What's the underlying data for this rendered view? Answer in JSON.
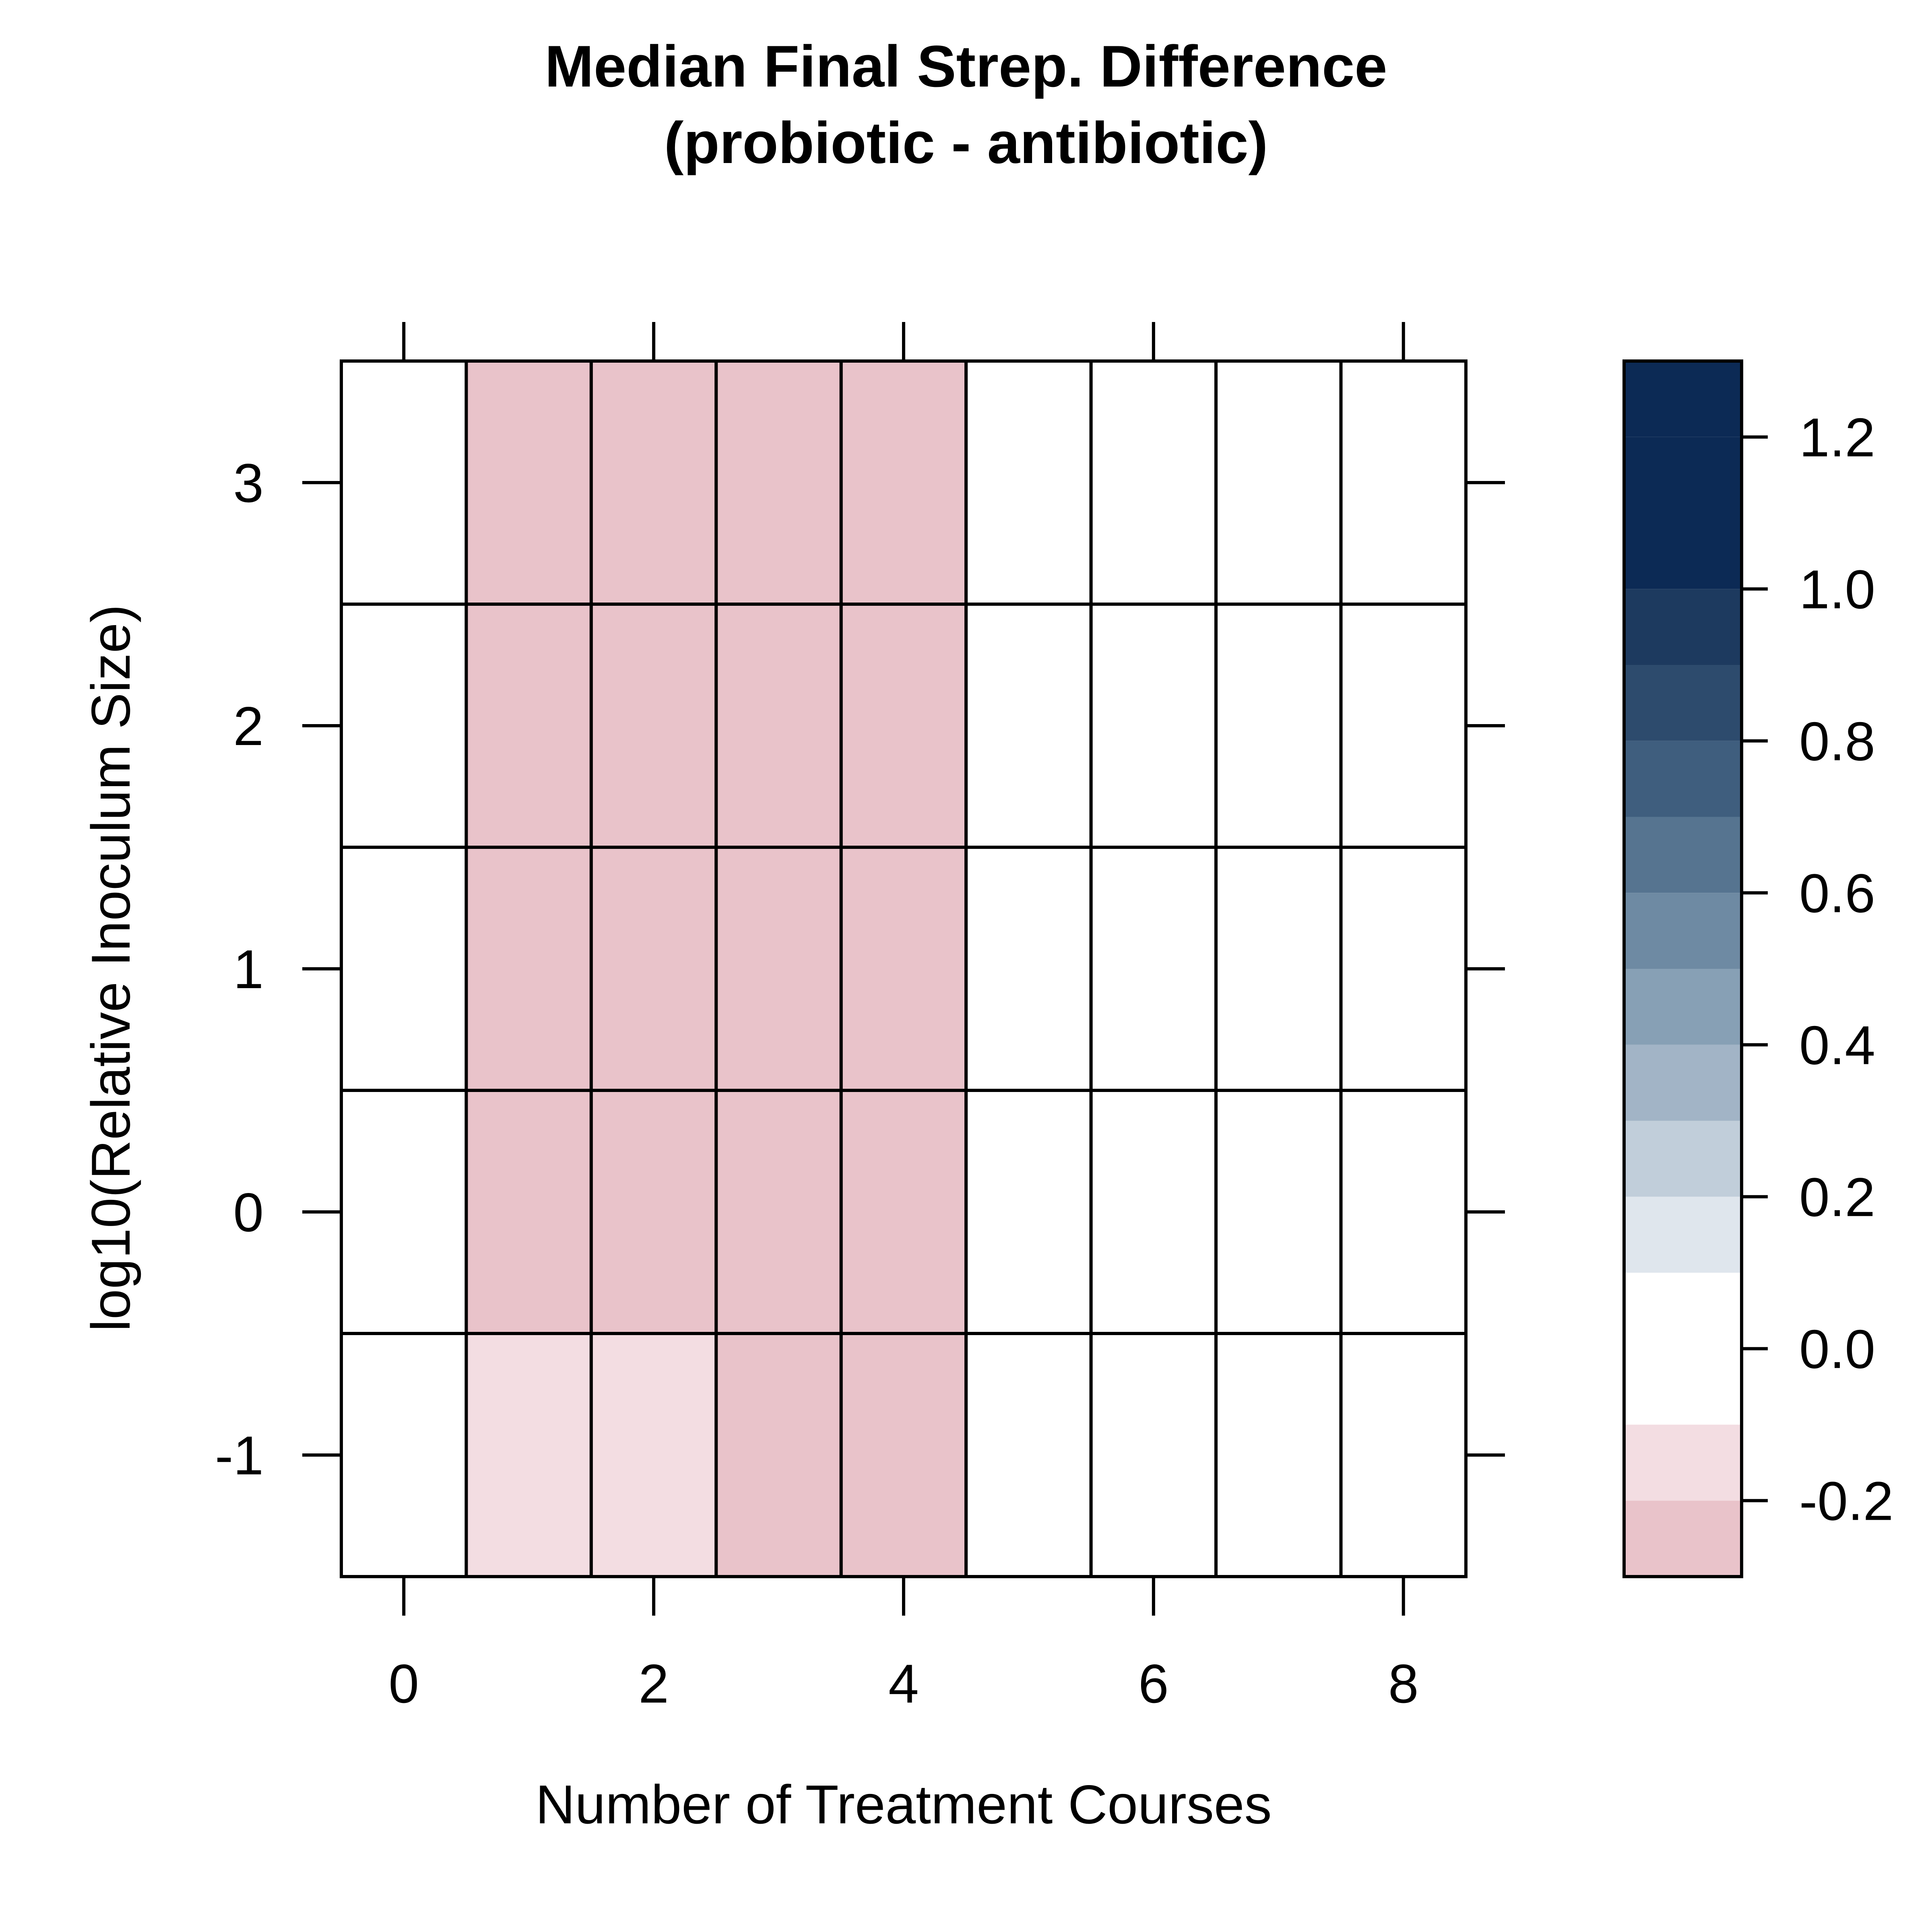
{
  "chart_data": {
    "type": "heatmap",
    "title": "Median Final Strep. Difference",
    "subtitle": "(probiotic - antibiotic)",
    "xlabel": "Number of Treatment Courses",
    "ylabel": "log10(Relative Inoculum Size)",
    "x": [
      0,
      1,
      2,
      3,
      4,
      5,
      6,
      7,
      8
    ],
    "y": [
      -1,
      0,
      1,
      2,
      3
    ],
    "x_ticks": [
      0,
      2,
      4,
      6,
      8
    ],
    "y_ticks": [
      -1,
      0,
      1,
      2,
      3
    ],
    "xlim": [
      -0.5,
      8.5
    ],
    "ylim": [
      -1.5,
      3.5
    ],
    "values": [
      [
        0,
        -0.15,
        -0.15,
        -0.25,
        -0.25,
        0,
        0,
        0,
        0
      ],
      [
        0,
        -0.25,
        -0.25,
        -0.25,
        -0.25,
        0,
        0,
        0,
        0
      ],
      [
        0,
        -0.25,
        -0.25,
        -0.25,
        -0.25,
        0,
        0,
        0,
        0
      ],
      [
        0,
        -0.25,
        -0.25,
        -0.25,
        -0.25,
        0,
        0,
        0,
        0
      ],
      [
        0,
        -0.25,
        -0.25,
        -0.25,
        -0.25,
        0,
        0,
        0,
        0
      ]
    ],
    "colorbar": {
      "ticks": [
        -0.2,
        0.0,
        0.2,
        0.4,
        0.6,
        0.8,
        1.0,
        1.2
      ],
      "tick_labels": [
        "-0.2",
        "0.0",
        "0.2",
        "0.4",
        "0.6",
        "0.8",
        "1.0",
        "1.2"
      ],
      "breaks": [
        -0.3,
        -0.2,
        -0.1,
        0.0,
        0.1,
        0.2,
        0.3,
        0.4,
        0.5,
        0.6,
        0.7,
        0.8,
        0.9,
        1.0,
        1.1,
        1.2,
        1.3
      ],
      "colors": [
        "#e9c3ca",
        "#f3dde2",
        "#ffffff",
        "#ffffff",
        "#dfe6ed",
        "#c1ceda",
        "#a2b4c6",
        "#87a0b5",
        "#6e8aa3",
        "#567490",
        "#3f5e7e",
        "#2d4b6d",
        "#1d3a5f",
        "#0c2a55",
        "#0c2a55",
        "#0c2a55"
      ]
    },
    "grid": false,
    "legend": "right colorbar"
  }
}
